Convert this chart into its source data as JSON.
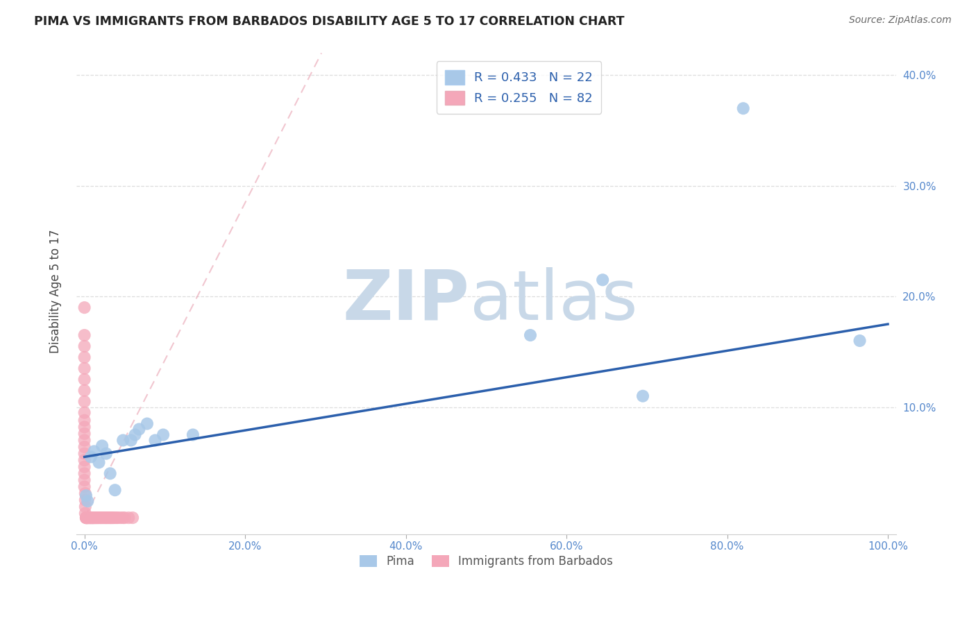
{
  "title": "PIMA VS IMMIGRANTS FROM BARBADOS DISABILITY AGE 5 TO 17 CORRELATION CHART",
  "source": "Source: ZipAtlas.com",
  "ylabel": "Disability Age 5 to 17",
  "xlim": [
    -0.01,
    1.01
  ],
  "ylim": [
    -0.015,
    0.425
  ],
  "xticks": [
    0.0,
    0.2,
    0.4,
    0.6,
    0.8,
    1.0
  ],
  "yticks": [
    0.0,
    0.1,
    0.2,
    0.3,
    0.4
  ],
  "xticklabels": [
    "0.0%",
    "20.0%",
    "40.0%",
    "60.0%",
    "80.0%",
    "100.0%"
  ],
  "yticklabels_right": [
    "",
    "10.0%",
    "20.0%",
    "30.0%",
    "40.0%"
  ],
  "pima_color": "#a8c8e8",
  "barbados_color": "#f4a7b9",
  "pima_R": 0.433,
  "pima_N": 22,
  "barbados_R": 0.255,
  "barbados_N": 82,
  "pima_line_color": "#2b5fac",
  "barbados_line_color": "#e8a0b0",
  "watermark_zip": "ZIP",
  "watermark_atlas": "atlas",
  "watermark_color_zip": "#c8d8e8",
  "watermark_color_atlas": "#c8d8e8",
  "background_color": "#ffffff",
  "grid_color": "#dddddd",
  "tick_color": "#5588cc",
  "pima_points_x": [
    0.002,
    0.004,
    0.008,
    0.012,
    0.018,
    0.022,
    0.027,
    0.032,
    0.038,
    0.048,
    0.058,
    0.063,
    0.068,
    0.078,
    0.088,
    0.098,
    0.135,
    0.555,
    0.645,
    0.695,
    0.82,
    0.965
  ],
  "pima_points_y": [
    0.02,
    0.015,
    0.055,
    0.06,
    0.05,
    0.065,
    0.058,
    0.04,
    0.025,
    0.07,
    0.07,
    0.075,
    0.08,
    0.085,
    0.07,
    0.075,
    0.075,
    0.165,
    0.215,
    0.11,
    0.37,
    0.16
  ],
  "barbados_points_x": [
    0.0,
    0.0,
    0.0,
    0.0,
    0.0,
    0.0,
    0.0,
    0.0,
    0.0,
    0.0,
    0.0,
    0.0,
    0.0,
    0.0,
    0.0,
    0.0,
    0.0,
    0.0,
    0.0,
    0.0,
    0.001,
    0.001,
    0.001,
    0.001,
    0.002,
    0.002,
    0.002,
    0.002,
    0.003,
    0.003,
    0.003,
    0.004,
    0.004,
    0.005,
    0.005,
    0.006,
    0.006,
    0.007,
    0.007,
    0.008,
    0.008,
    0.009,
    0.009,
    0.01,
    0.01,
    0.011,
    0.011,
    0.012,
    0.012,
    0.013,
    0.014,
    0.015,
    0.015,
    0.016,
    0.017,
    0.018,
    0.019,
    0.02,
    0.021,
    0.022,
    0.023,
    0.024,
    0.025,
    0.026,
    0.027,
    0.028,
    0.029,
    0.03,
    0.031,
    0.032,
    0.033,
    0.034,
    0.035,
    0.036,
    0.038,
    0.04,
    0.042,
    0.045,
    0.048,
    0.05,
    0.055,
    0.06
  ],
  "barbados_points_y": [
    0.19,
    0.165,
    0.155,
    0.145,
    0.135,
    0.125,
    0.115,
    0.105,
    0.095,
    0.088,
    0.082,
    0.076,
    0.07,
    0.064,
    0.058,
    0.052,
    0.046,
    0.04,
    0.034,
    0.028,
    0.022,
    0.016,
    0.01,
    0.004,
    0.0,
    0.0,
    0.0,
    0.0,
    0.0,
    0.0,
    0.0,
    0.0,
    0.0,
    0.0,
    0.0,
    0.0,
    0.0,
    0.0,
    0.0,
    0.0,
    0.0,
    0.0,
    0.0,
    0.0,
    0.0,
    0.0,
    0.0,
    0.0,
    0.0,
    0.0,
    0.0,
    0.0,
    0.0,
    0.0,
    0.0,
    0.0,
    0.0,
    0.0,
    0.0,
    0.0,
    0.0,
    0.0,
    0.0,
    0.0,
    0.0,
    0.0,
    0.0,
    0.0,
    0.0,
    0.0,
    0.0,
    0.0,
    0.0,
    0.0,
    0.0,
    0.0,
    0.0,
    0.0,
    0.0,
    0.0,
    0.0,
    0.0
  ],
  "pima_line_x0": 0.0,
  "pima_line_x1": 1.0,
  "pima_line_y0": 0.055,
  "pima_line_y1": 0.175,
  "barbados_line_x0": 0.0,
  "barbados_line_x1": 0.295,
  "barbados_line_y0": 0.0,
  "barbados_line_y1": 0.42
}
